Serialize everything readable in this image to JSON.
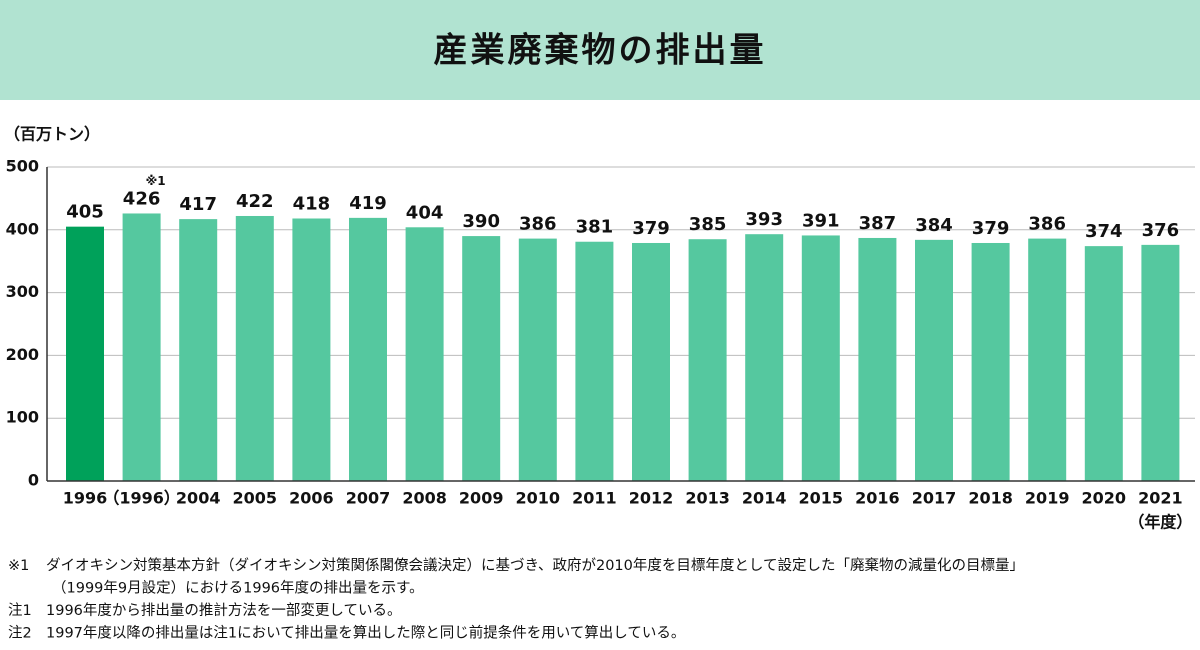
{
  "chart_data": {
    "type": "bar",
    "title": "産業廃棄物の排出量",
    "y_label": "（百万トン）",
    "x_label": "（年度）",
    "categories": [
      "1996",
      "（1996）",
      "2004",
      "2005",
      "2006",
      "2007",
      "2008",
      "2009",
      "2010",
      "2011",
      "2012",
      "2013",
      "2014",
      "2015",
      "2016",
      "2017",
      "2018",
      "2019",
      "2020",
      "2021"
    ],
    "values": [
      405,
      426,
      417,
      422,
      418,
      419,
      404,
      390,
      386,
      381,
      379,
      385,
      393,
      391,
      387,
      384,
      379,
      386,
      374,
      376
    ],
    "colors": [
      "#00a15a",
      "#55c89f",
      "#55c89f",
      "#55c89f",
      "#55c89f",
      "#55c89f",
      "#55c89f",
      "#55c89f",
      "#55c89f",
      "#55c89f",
      "#55c89f",
      "#55c89f",
      "#55c89f",
      "#55c89f",
      "#55c89f",
      "#55c89f",
      "#55c89f",
      "#55c89f",
      "#55c89f",
      "#55c89f"
    ],
    "annotation": {
      "text": "※1",
      "category": "（1996）"
    },
    "ylim": [
      0,
      500
    ],
    "yticks": [
      0,
      100,
      200,
      300,
      400,
      500
    ],
    "grid": true
  },
  "notes": [
    {
      "marker": "※1",
      "lines": [
        "ダイオキシン対策基本方針（ダイオキシン対策関係閣僚会議決定）に基づき、政府が2010年度を目標年度として設定した「廃棄物の減量化の目標量」",
        "（1999年9月設定）における1996年度の排出量を示す。"
      ]
    },
    {
      "marker": "注1",
      "lines": [
        "1996年度から排出量の推計方法を一部変更している。"
      ]
    },
    {
      "marker": "注2",
      "lines": [
        "1997年度以降の排出量は注1において排出量を算出した際と同じ前提条件を用いて算出している。"
      ]
    }
  ]
}
